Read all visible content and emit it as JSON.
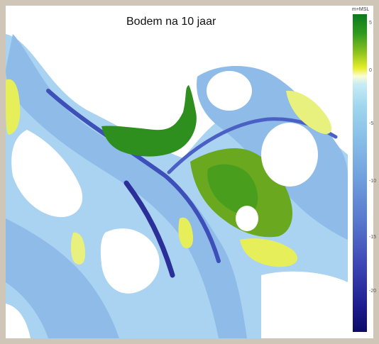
{
  "title": "Bodem na 10 jaar",
  "colorbar": {
    "unit": "m+MSL",
    "ticks": [
      {
        "label": "5",
        "value": 5
      },
      {
        "label": "0",
        "value": 0
      },
      {
        "label": "-5",
        "value": -5
      },
      {
        "label": "-10",
        "value": -10
      },
      {
        "label": "-15",
        "value": -15
      },
      {
        "label": "-20",
        "value": -20
      }
    ],
    "range": [
      5,
      -25
    ],
    "colors": {
      "high": "#0a7a1e",
      "mid_high": "#e7ee2a",
      "zero": "#fbfdd4",
      "mid_low": "#86bde8",
      "low": "#0d0b66"
    }
  },
  "map": {
    "colors": {
      "land": "#ffffff",
      "deep_channel": "#3d4fb8",
      "channel": "#8db8e6",
      "shallow": "#b8e0f4",
      "flat": "#e9f07a",
      "vegetated": "#2e8f1e"
    }
  }
}
